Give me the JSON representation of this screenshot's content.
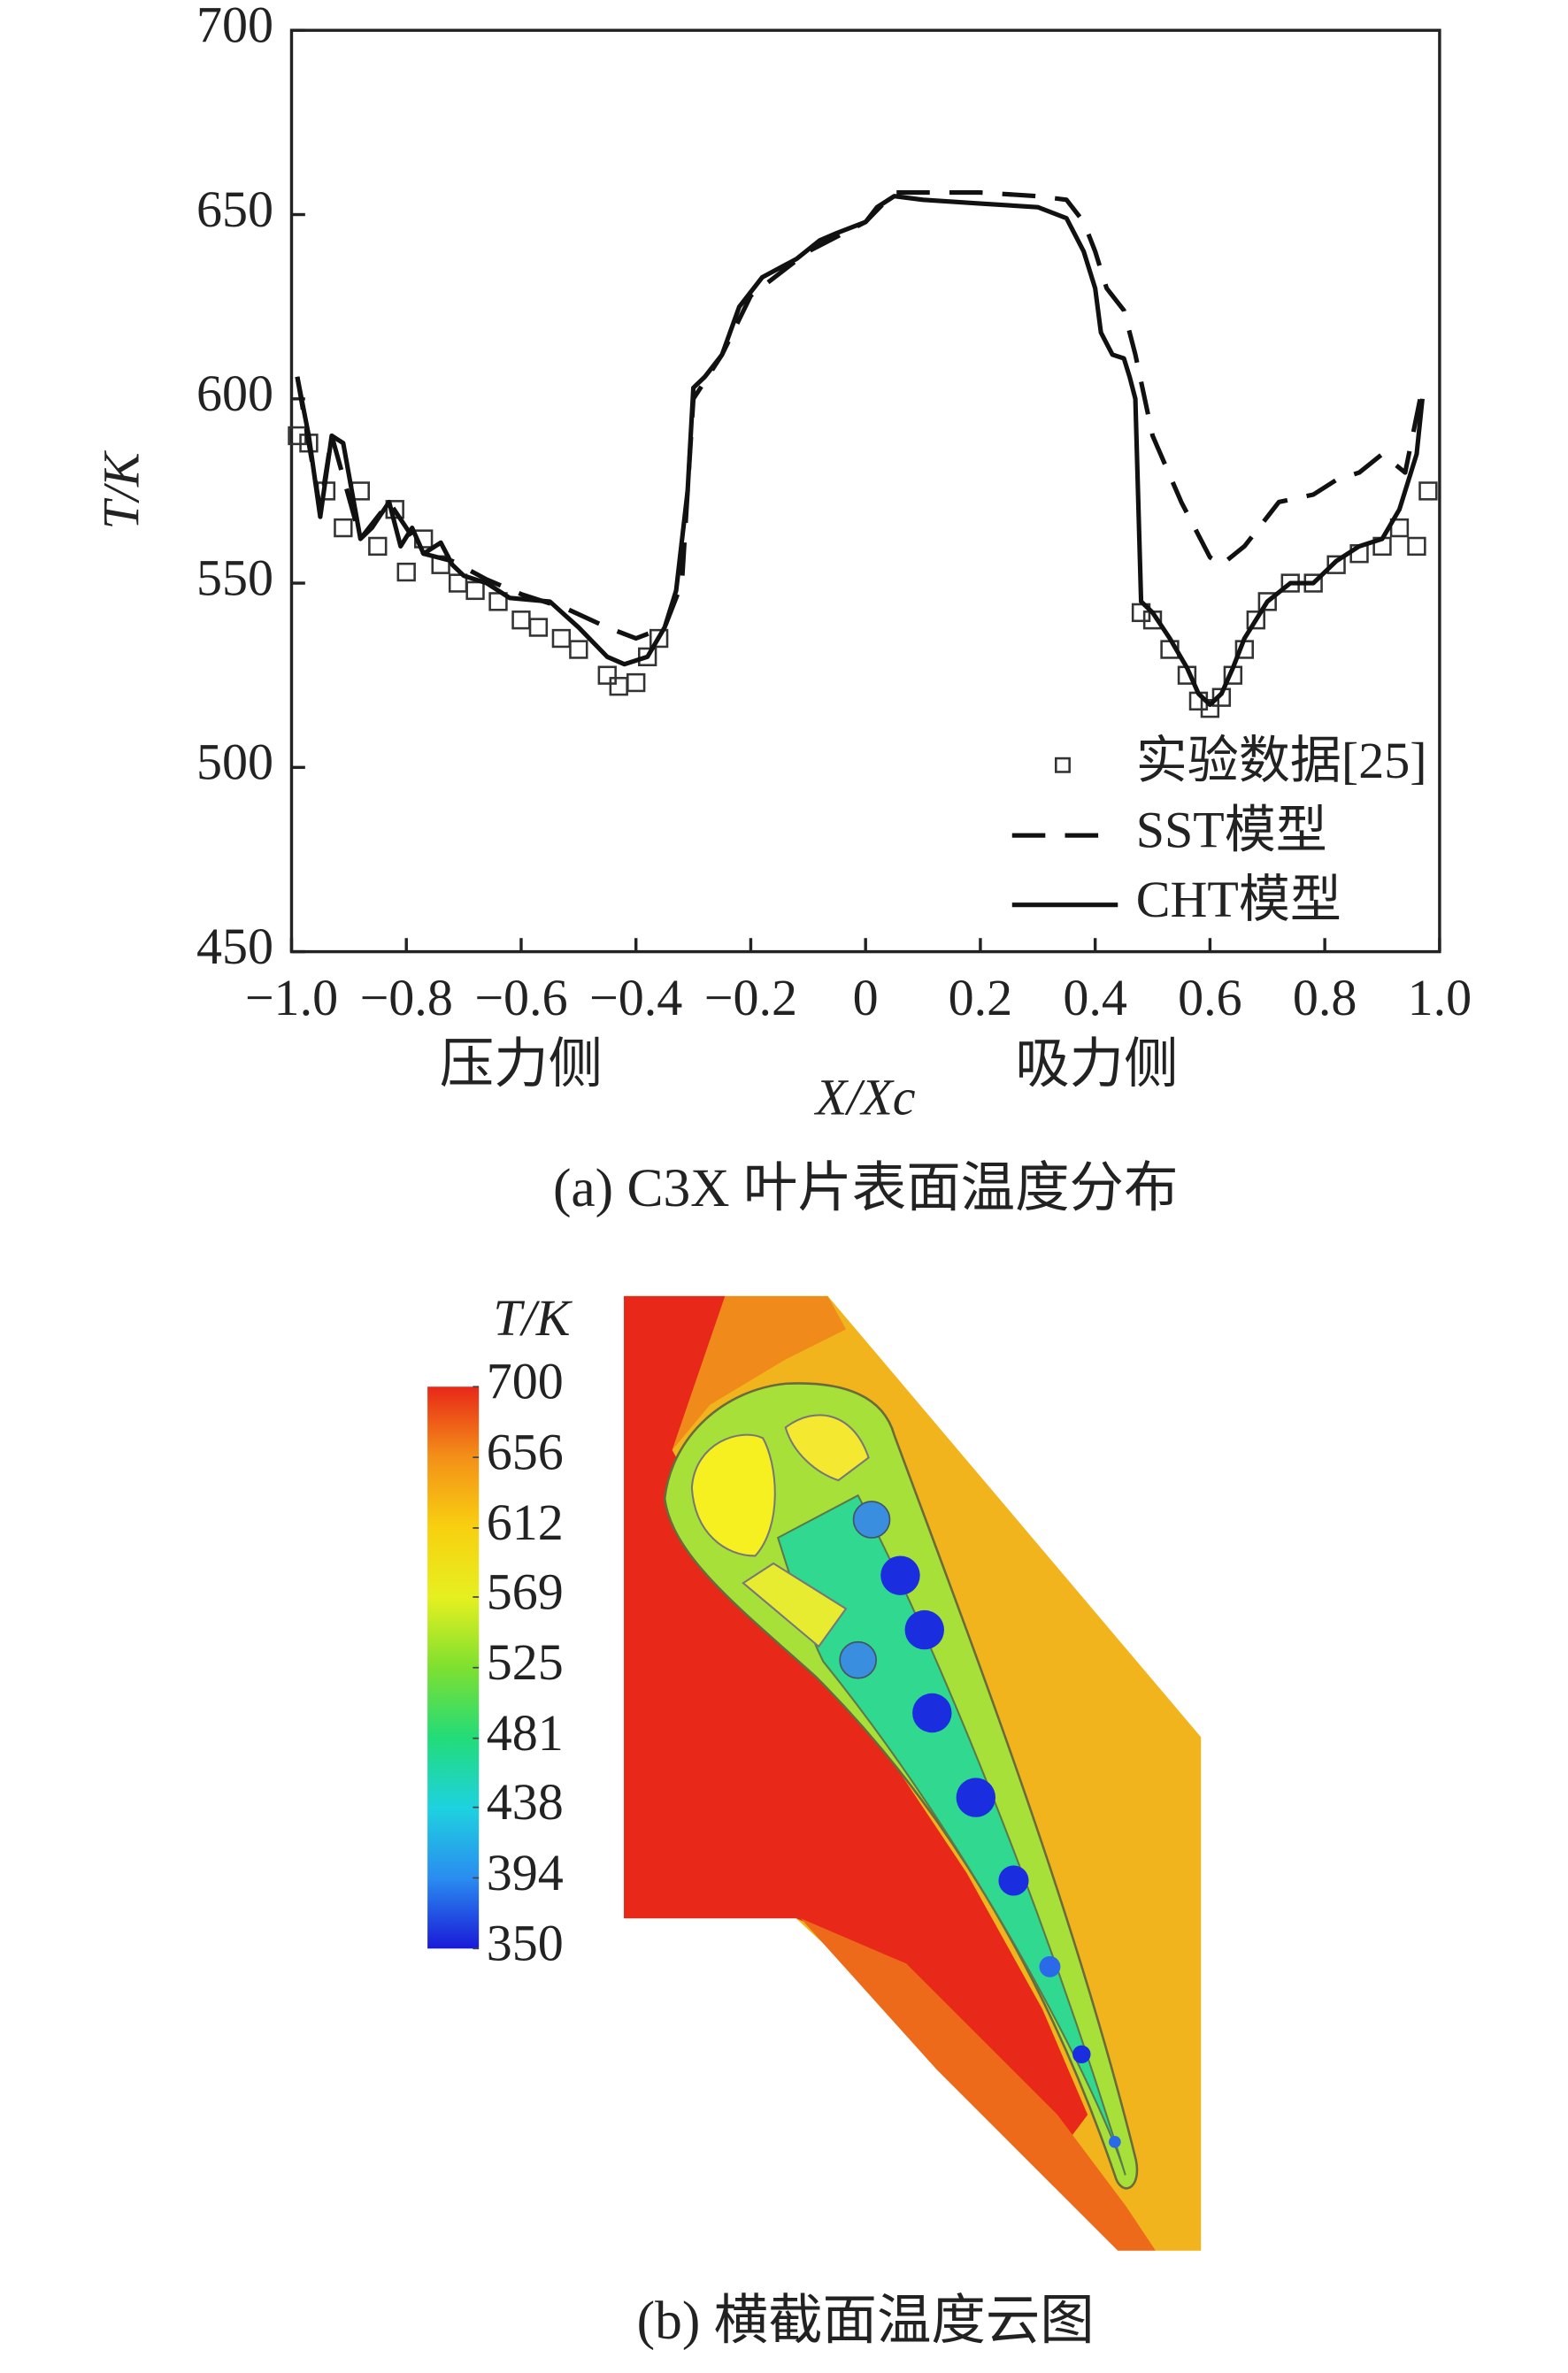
{
  "chart_data": [
    {
      "type": "line",
      "caption": "(a) C3X 叶片表面温度分布",
      "y_label": "T/K",
      "x_label": "X/Xc",
      "annotations": [
        "压力侧",
        "吸力侧"
      ],
      "xlim": [
        -1,
        1
      ],
      "ylim": [
        450,
        700
      ],
      "xticks": [
        {
          "value": -1,
          "label": "−1.0"
        },
        {
          "value": -0.8,
          "label": "−0.8"
        },
        {
          "value": -0.6,
          "label": "−0.6"
        },
        {
          "value": -0.4,
          "label": "−0.4"
        },
        {
          "value": -0.2,
          "label": "−0.2"
        },
        0,
        0.2,
        0.4,
        0.6,
        0.8,
        {
          "value": 1,
          "label": "1.0"
        }
      ],
      "yticks": [
        450,
        500,
        550,
        600,
        650,
        700
      ],
      "series": [
        {
          "name": "实验数据[25]",
          "style": "markers",
          "color": "#333333",
          "x": [
            -0.99,
            -0.97,
            -0.94,
            -0.91,
            -0.88,
            -0.85,
            -0.82,
            -0.8,
            -0.77,
            -0.74,
            -0.71,
            -0.68,
            -0.64,
            -0.6,
            -0.57,
            -0.53,
            -0.5,
            -0.45,
            -0.43,
            -0.4,
            -0.38,
            -0.36,
            0.48,
            0.5,
            0.53,
            0.56,
            0.58,
            0.6,
            0.62,
            0.64,
            0.66,
            0.68,
            0.7,
            0.74,
            0.78,
            0.82,
            0.86,
            0.9,
            0.93,
            0.96,
            0.98
          ],
          "values": [
            590,
            588,
            575,
            565,
            575,
            560,
            570,
            553,
            562,
            555,
            550,
            548,
            545,
            540,
            538,
            535,
            532,
            525,
            522,
            523,
            530,
            535,
            542,
            540,
            532,
            525,
            518,
            516,
            519,
            525,
            532,
            540,
            545,
            550,
            550,
            555,
            558,
            560,
            565,
            560,
            575
          ]
        },
        {
          "name": "SST模型",
          "style": "dashed",
          "color": "#111111",
          "x": [
            -0.99,
            -0.95,
            -0.93,
            -0.88,
            -0.83,
            -0.77,
            -0.72,
            -0.66,
            -0.6,
            -0.52,
            -0.45,
            -0.4,
            -0.35,
            -0.32,
            -0.3,
            -0.25,
            -0.2,
            -0.1,
            0,
            0.05,
            0.1,
            0.2,
            0.3,
            0.35,
            0.38,
            0.4,
            0.42,
            0.45,
            0.47,
            0.5,
            0.55,
            0.6,
            0.62,
            0.66,
            0.7,
            0.72,
            0.78,
            0.82,
            0.86,
            0.9,
            0.94,
            0.97
          ],
          "values": [
            606,
            570,
            590,
            562,
            572,
            558,
            556,
            551,
            547,
            543,
            538,
            535,
            538,
            550,
            600,
            612,
            628,
            640,
            648,
            656,
            656,
            656,
            655,
            654,
            648,
            640,
            630,
            624,
            612,
            590,
            572,
            557,
            555,
            560,
            568,
            572,
            574,
            578,
            580,
            585,
            580,
            603
          ]
        },
        {
          "name": "CHT模型",
          "style": "solid",
          "color": "#111111",
          "x": [
            -0.99,
            -0.97,
            -0.95,
            -0.93,
            -0.91,
            -0.88,
            -0.86,
            -0.83,
            -0.81,
            -0.79,
            -0.77,
            -0.74,
            -0.72,
            -0.7,
            -0.66,
            -0.62,
            -0.55,
            -0.5,
            -0.45,
            -0.42,
            -0.38,
            -0.35,
            -0.33,
            -0.31,
            -0.3,
            -0.28,
            -0.25,
            -0.22,
            -0.18,
            -0.12,
            -0.08,
            -0.05,
            0,
            0.02,
            0.05,
            0.1,
            0.2,
            0.3,
            0.35,
            0.38,
            0.4,
            0.41,
            0.43,
            0.45,
            0.46,
            0.47,
            0.48,
            0.5,
            0.53,
            0.56,
            0.58,
            0.6,
            0.62,
            0.64,
            0.66,
            0.7,
            0.74,
            0.78,
            0.82,
            0.86,
            0.9,
            0.93,
            0.96,
            0.97
          ],
          "values": [
            606,
            590,
            568,
            590,
            588,
            562,
            565,
            572,
            560,
            565,
            558,
            561,
            555,
            552,
            550,
            546,
            545,
            538,
            530,
            528,
            530,
            538,
            548,
            575,
            603,
            606,
            612,
            625,
            633,
            638,
            643,
            645,
            648,
            652,
            655,
            654,
            653,
            652,
            649,
            640,
            630,
            618,
            612,
            611,
            606,
            600,
            545,
            542,
            535,
            527,
            520,
            517,
            520,
            527,
            535,
            545,
            550,
            550,
            556,
            560,
            562,
            570,
            585,
            600
          ]
        }
      ]
    },
    {
      "type": "contour",
      "caption": "(b) 横截面温度云图",
      "colorbar_label": "T/K",
      "zlim": [
        350,
        700
      ],
      "zticks": [
        700,
        656,
        612,
        569,
        525,
        481,
        438,
        394,
        350
      ],
      "colorscale": [
        "#1a1ad8",
        "#2a8cf0",
        "#1ed2e0",
        "#22dc78",
        "#7ee030",
        "#e6f020",
        "#f8d010",
        "#f49018",
        "#e82818"
      ]
    }
  ]
}
